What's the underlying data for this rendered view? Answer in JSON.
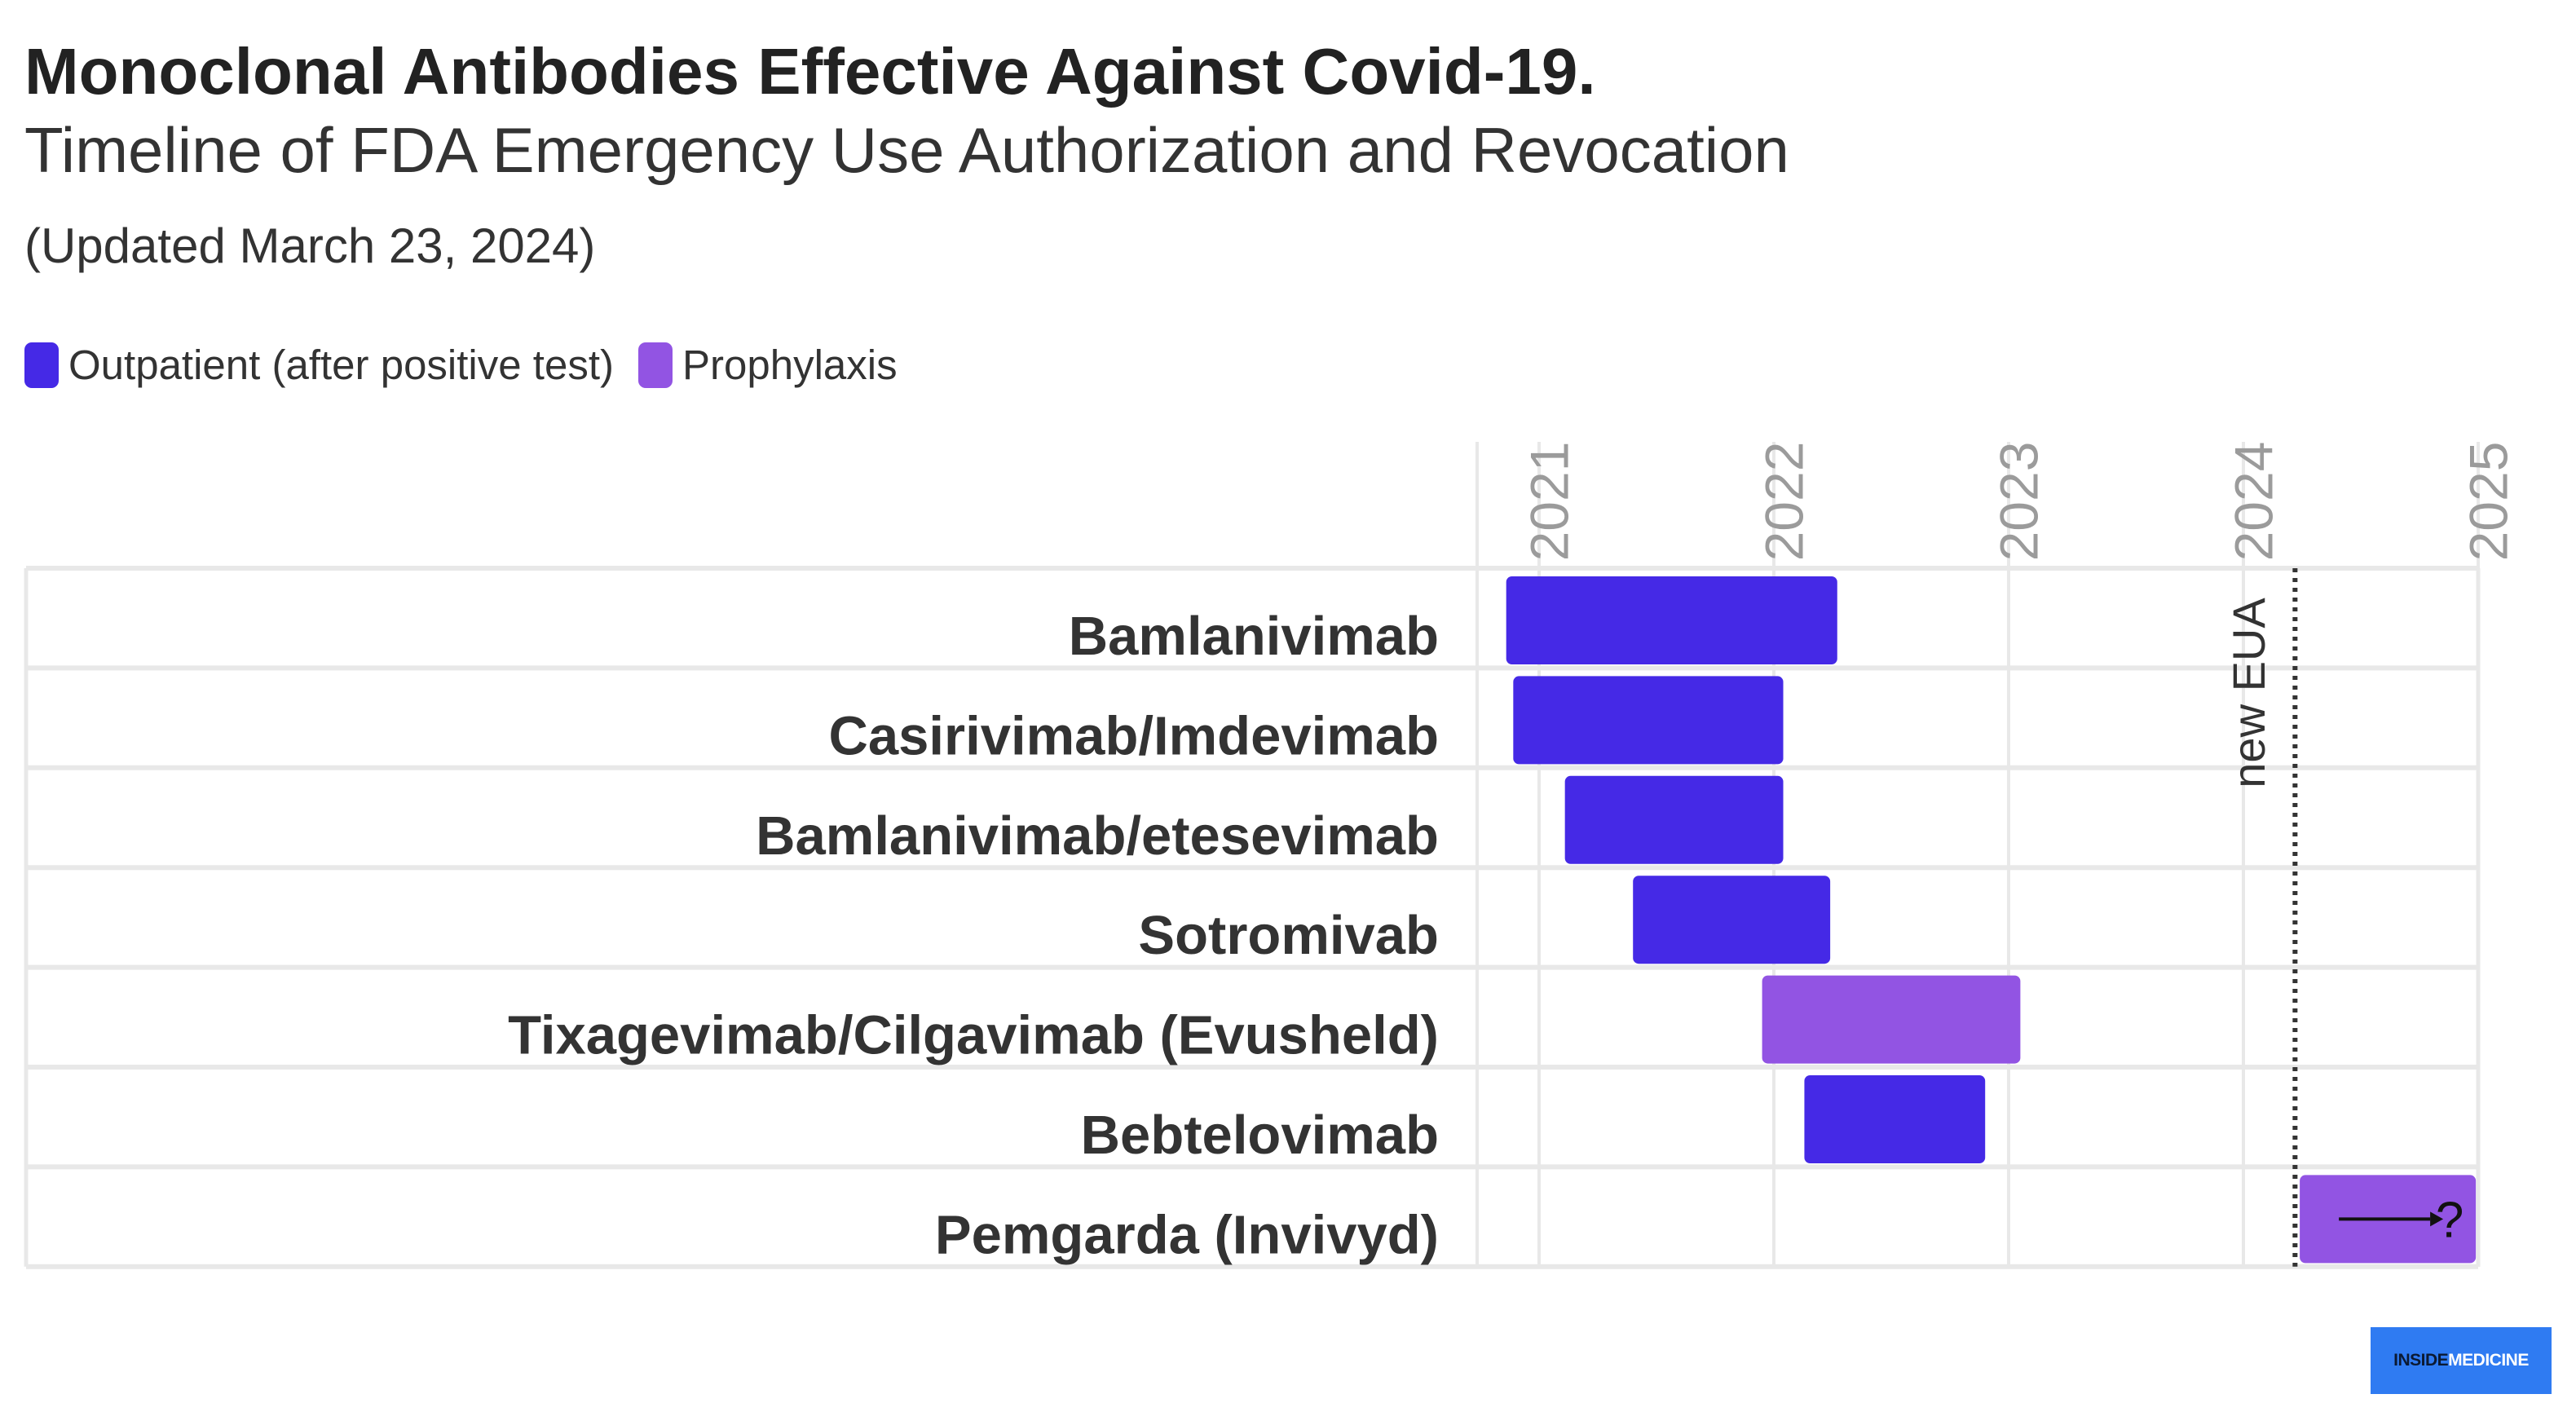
{
  "header": {
    "title": "Monoclonal Antibodies Effective Against Covid-19.",
    "subtitle": "Timeline of FDA Emergency Use Authorization and Revocation",
    "note": "(Updated March 23, 2024)"
  },
  "legend": [
    {
      "label": "Outpatient (after positive test)",
      "color": "#4529e6"
    },
    {
      "label": "Prophylaxis",
      "color": "#9254e3"
    }
  ],
  "chart_data": {
    "type": "gantt",
    "title": "Monoclonal Antibodies Effective Against Covid-19.",
    "subtitle": "Timeline of FDA Emergency Use Authorization and Revocation",
    "x_axis": {
      "min": 2020.75,
      "max": 2025.0,
      "ticks": [
        "2021",
        "2022",
        "2023",
        "2024",
        "2025"
      ],
      "tick_values": [
        2021,
        2022,
        2023,
        2024,
        2025
      ],
      "position": "top",
      "grid": true
    },
    "series": [
      {
        "name": "Outpatient (after positive test)",
        "color": "#4529e6"
      },
      {
        "name": "Prophylaxis",
        "color": "#9254e3"
      }
    ],
    "tasks": [
      {
        "label": "Bamlanivimab",
        "start": 2020.86,
        "end": 2022.27,
        "series": "Outpatient (after positive test)"
      },
      {
        "label": "Casirivimab/Imdevimab",
        "start": 2020.89,
        "end": 2022.04,
        "series": "Outpatient (after positive test)"
      },
      {
        "label": "Bamlanivimab/etesevimab",
        "start": 2021.11,
        "end": 2022.04,
        "series": "Outpatient (after positive test)"
      },
      {
        "label": "Sotromivab",
        "start": 2021.4,
        "end": 2022.24,
        "series": "Outpatient (after positive test)"
      },
      {
        "label": "Tixagevimab/Cilgavimab (Evusheld)",
        "start": 2021.95,
        "end": 2023.05,
        "series": "Prophylaxis"
      },
      {
        "label": "Bebtelovimab",
        "start": 2022.13,
        "end": 2022.9,
        "series": "Outpatient (after positive test)"
      },
      {
        "label": "Pemgarda (Invivyd)",
        "start": 2024.24,
        "end": 2024.99,
        "series": "Prophylaxis",
        "annotation": "?"
      }
    ],
    "reference_lines": [
      {
        "x": 2024.22,
        "label": "new EUA",
        "style": "dotted"
      }
    ]
  },
  "brand": {
    "prefix": "INSIDE",
    "suffix": "MEDICINE"
  }
}
